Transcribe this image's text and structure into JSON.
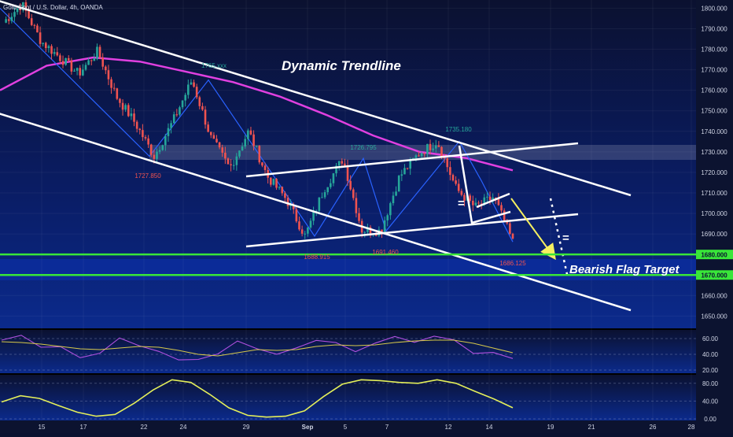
{
  "header": {
    "symbol_title": "Gold Spot / U.S. Dollar, 4h, OANDA"
  },
  "annotations": {
    "dynamic_trendline": "Dynamic Trendline",
    "bearish_flag_target": "Bearish Flag Target",
    "equal_mark": "="
  },
  "colors": {
    "background_top": "#0b1130",
    "background_bottom": "#0b2a8c",
    "up_candle": "#26a69a",
    "down_candle": "#ef5350",
    "ma_line": "#e040e0",
    "zigzag": "#2962ff",
    "trend_lines": "#ffffff",
    "target_lines": "#39e639",
    "target_arrow": "#f5f060",
    "rsi_line": "#b050e0",
    "rsi_signal": "#d6c84a",
    "stoch_line": "#e4ef5a"
  },
  "chart_data": [
    {
      "type": "candlestick",
      "title": "Gold Spot / U.S. Dollar, 4h, OANDA",
      "ylim": [
        1644,
        1804
      ],
      "y_ticks": [
        1650,
        1660,
        1670,
        1680,
        1690,
        1700,
        1710,
        1720,
        1730,
        1740,
        1750,
        1760,
        1770,
        1780,
        1790,
        1800
      ],
      "x_ticks": [
        "15",
        "17",
        "22",
        "24",
        "29",
        "Sep",
        "5",
        "7",
        "12",
        "14",
        "19",
        "21",
        "26",
        "28"
      ],
      "price_labels": [
        {
          "label": "1765.xxx",
          "x": "22 - 24",
          "y": 1765
        },
        {
          "label": "1727.850",
          "x": "22",
          "y": 1727.85
        },
        {
          "label": "1688.915",
          "x": "Sep",
          "y": 1688.915
        },
        {
          "label": "1691.460",
          "x": "7",
          "y": 1691.46
        },
        {
          "label": "1726.795",
          "x": "5",
          "y": 1726.795
        },
        {
          "label": "1735.180",
          "x": "12",
          "y": 1735.18
        },
        {
          "label": "1686.125",
          "x": "14",
          "y": 1686.125
        }
      ],
      "horizontal_levels": [
        1680,
        1670
      ],
      "level_labels": [
        "1680.000",
        "1670.000"
      ],
      "close_path": [
        1793,
        1802,
        1784,
        1776,
        1768,
        1779,
        1757,
        1744,
        1727.85,
        1745,
        1765,
        1737,
        1722,
        1740,
        1718,
        1707,
        1688.915,
        1712,
        1726.795,
        1692,
        1691.46,
        1718,
        1729,
        1735.18,
        1712,
        1703,
        1708,
        1686.125
      ],
      "moving_average": [
        1760,
        1772,
        1776,
        1774,
        1769,
        1764,
        1757,
        1748,
        1738,
        1730,
        1727,
        1721
      ]
    },
    {
      "type": "line",
      "name_hidden": true,
      "y_ticks": [
        20,
        40,
        60
      ],
      "ylim": [
        18,
        68
      ],
      "series": [
        {
          "values": [
            58,
            62,
            52,
            48,
            35,
            44,
            58,
            52,
            45,
            30,
            36,
            40,
            55,
            50,
            38,
            48,
            60,
            52,
            45,
            55,
            60,
            58,
            62,
            57,
            44,
            40,
            35
          ]
        },
        {
          "values": [
            56,
            55,
            53,
            50,
            47,
            46,
            48,
            50,
            49,
            45,
            40,
            38,
            42,
            46,
            45,
            46,
            50,
            52,
            51,
            52,
            55,
            57,
            58,
            58,
            54,
            48,
            42
          ]
        }
      ]
    },
    {
      "type": "line",
      "y_ticks": [
        0.0,
        40.0,
        80.0
      ],
      "tick_labels": [
        "0.00",
        "40.00",
        "80.00"
      ],
      "ylim": [
        0,
        92
      ],
      "series": [
        {
          "values": [
            38,
            52,
            46,
            30,
            15,
            6,
            10,
            35,
            65,
            88,
            82,
            55,
            25,
            8,
            4,
            6,
            18,
            50,
            78,
            88,
            86,
            82,
            80,
            88,
            80,
            62,
            45,
            25
          ]
        }
      ]
    }
  ]
}
